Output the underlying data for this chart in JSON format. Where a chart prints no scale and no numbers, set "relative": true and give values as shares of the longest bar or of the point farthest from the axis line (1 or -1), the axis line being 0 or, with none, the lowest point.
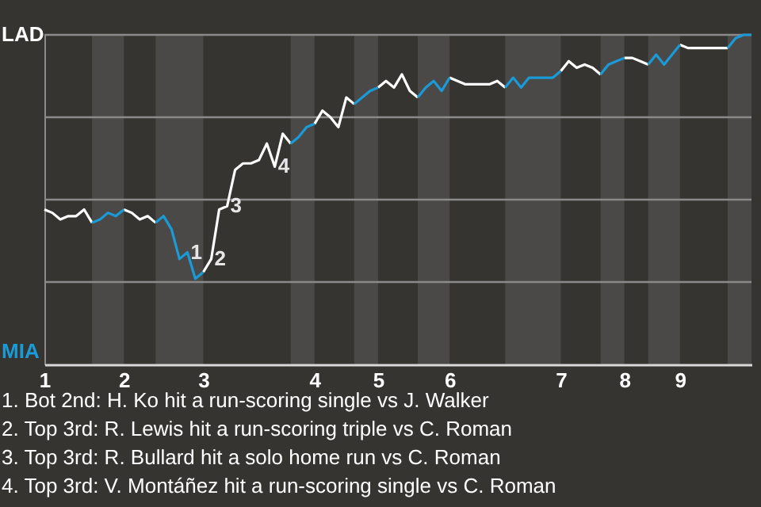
{
  "chart_data": {
    "type": "line",
    "relative": true,
    "categories": [
      "1",
      null,
      null,
      null,
      null,
      null,
      null,
      null,
      null,
      null,
      "2",
      null,
      null,
      null,
      null,
      null,
      null,
      null,
      null,
      null,
      "3",
      null,
      null,
      null,
      null,
      null,
      null,
      null,
      null,
      null,
      null,
      null,
      null,
      null,
      "4",
      null,
      null,
      null,
      null,
      null,
      null,
      null,
      "5",
      null,
      null,
      null,
      null,
      null,
      null,
      null,
      null,
      "6",
      null,
      null,
      null,
      null,
      null,
      null,
      null,
      null,
      null,
      null,
      null,
      null,
      null,
      "7",
      null,
      null,
      null,
      null,
      null,
      null,
      null,
      "8",
      null,
      null,
      null,
      null,
      null,
      null,
      "9",
      null,
      null,
      null,
      null,
      null,
      null,
      null,
      null,
      null
    ],
    "line_style": "solid",
    "marker": "none",
    "series": [
      {
        "color": "#ffffff",
        "values": [
          0.47,
          0.46,
          0.44,
          0.45,
          0.45,
          0.47,
          0.43,
          null,
          null,
          null,
          0.47,
          0.46,
          0.44,
          0.45,
          0.43,
          null,
          null,
          null,
          null,
          null,
          0.28,
          0.32,
          0.47,
          0.48,
          0.59,
          0.61,
          0.61,
          0.62,
          0.67,
          0.6,
          0.7,
          0.67,
          null,
          null,
          0.73,
          0.77,
          0.75,
          0.72,
          0.81,
          0.79,
          null,
          null,
          0.84,
          0.86,
          0.84,
          0.88,
          0.83,
          0.81,
          null,
          null,
          null,
          0.87,
          0.86,
          0.85,
          0.85,
          0.85,
          0.85,
          0.86,
          0.84,
          null,
          null,
          null,
          null,
          null,
          null,
          0.89,
          0.92,
          0.9,
          0.91,
          0.9,
          0.88,
          null,
          null,
          0.93,
          0.93,
          0.92,
          0.91,
          null,
          null,
          null,
          0.97,
          0.96,
          0.96,
          0.96,
          0.96,
          0.96,
          0.96,
          null,
          null,
          null
        ],
        "line_style": "solid"
      },
      {
        "color": "#1a9ad6",
        "values": [
          null,
          null,
          null,
          null,
          null,
          null,
          0.43,
          0.44,
          0.46,
          0.45,
          0.47,
          null,
          null,
          null,
          0.43,
          0.45,
          0.41,
          0.32,
          0.34,
          0.26,
          0.28,
          null,
          null,
          null,
          null,
          null,
          null,
          null,
          null,
          null,
          null,
          0.67,
          0.69,
          0.72,
          0.73,
          null,
          null,
          null,
          null,
          0.79,
          0.81,
          0.83,
          0.84,
          null,
          null,
          null,
          null,
          0.81,
          0.84,
          0.86,
          0.83,
          0.87,
          null,
          null,
          null,
          null,
          null,
          null,
          0.84,
          0.87,
          0.84,
          0.87,
          0.87,
          0.87,
          0.87,
          0.89,
          null,
          null,
          null,
          null,
          0.88,
          0.91,
          0.92,
          0.93,
          null,
          null,
          0.91,
          0.94,
          0.91,
          0.94,
          0.97,
          null,
          null,
          null,
          null,
          null,
          0.96,
          0.99,
          1.0,
          1.0
        ]
      }
    ],
    "ref_lines": [
      {
        "axis": "y",
        "value": 0.25,
        "color": "#8a8a8a"
      },
      {
        "axis": "y",
        "value": 0.5,
        "color": "#8a8a8a"
      },
      {
        "axis": "y",
        "value": 0.75,
        "color": "#8a8a8a"
      },
      {
        "axis": "y",
        "value": 1,
        "color": "#8a8a8a"
      }
    ],
    "annotations": [
      "LAD",
      "MIA",
      {
        "text": "1",
        "y": 0.34
      },
      {
        "text": "2",
        "y": 0.32
      },
      {
        "text": "3",
        "y": 0.48
      },
      {
        "text": "4",
        "y": 0.6
      },
      "1. Bot 2nd: H. Ko hit a run-scoring single vs J. Walker",
      "2. Top 3rd: R. Lewis hit a run-scoring triple vs C. Roman",
      "3. Top 3rd: R. Bullard hit a solo home run vs C. Roman",
      "4. Top 3rd: V. Montáñez hit a run-scoring single vs C. Roman"
    ]
  }
}
